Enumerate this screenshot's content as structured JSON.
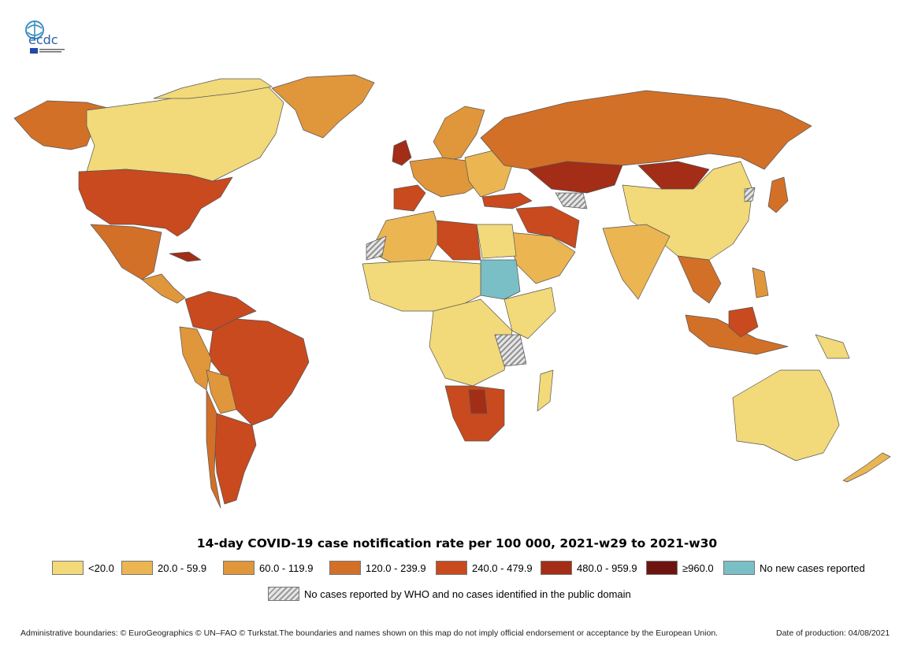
{
  "logo": {
    "text": "ecdc",
    "subtext": "EUROPEAN CENTRE FOR DISEASE PREVENTION AND CONTROL"
  },
  "title": "14-day COVID-19 case notification rate per 100 000, 2021-w29 to 2021-w30",
  "legend": {
    "items": [
      {
        "label": "<20.0",
        "color": "#f2d97a"
      },
      {
        "label": "20.0 - 59.9",
        "color": "#ebb552"
      },
      {
        "label": "60.0 - 119.9",
        "color": "#e0963a"
      },
      {
        "label": "120.0 - 239.9",
        "color": "#d27028"
      },
      {
        "label": "240.0 - 479.9",
        "color": "#c84a1e"
      },
      {
        "label": "480.0 - 959.9",
        "color": "#a32d16"
      },
      {
        "label": "≥960.0",
        "color": "#6e1410"
      },
      {
        "label": "No new cases reported",
        "color": "#7bbfc6"
      }
    ],
    "hatch_label": "No cases reported by WHO and no cases identified in the public domain"
  },
  "footer": {
    "left": "Administrative boundaries: © EuroGeographics © UN–FAO © Turkstat.The boundaries and names shown on this map do not imply official endorsement or acceptance by the European Union.",
    "right": "Date of production: 04/08/2021"
  }
}
